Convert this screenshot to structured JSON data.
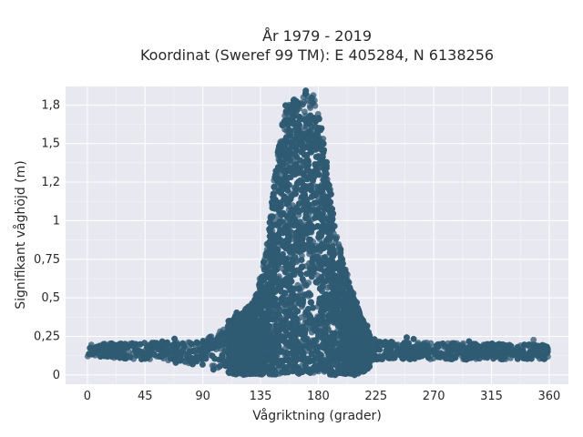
{
  "chart_data": {
    "type": "scatter",
    "title_lines": [
      "År 1979 - 2019",
      "Koordinat (Sweref 99 TM): E 405284, N 6138256"
    ],
    "xlabel": "Vågriktning (grader)",
    "ylabel": "Signifikant våghöjd (m)",
    "xlim": [
      -17,
      375
    ],
    "ylim": [
      -0.06,
      1.87
    ],
    "x_ticks": [
      0,
      45,
      90,
      135,
      180,
      225,
      270,
      315,
      360
    ],
    "x_tick_labels": [
      "0",
      "45",
      "90",
      "135",
      "180",
      "225",
      "270",
      "315",
      "360"
    ],
    "y_ticks": [
      0,
      0.25,
      0.5,
      0.75,
      1,
      1.25,
      1.5,
      1.75
    ],
    "y_tick_labels": [
      "0",
      "0,25",
      "0,5",
      "0,75",
      "1",
      "1,2",
      "1,5",
      "1,8"
    ],
    "grid": true,
    "marker_color": "#2f5b73",
    "plot_background": "#e8e8f0",
    "envelope": {
      "x": [
        0,
        45,
        90,
        100,
        110,
        120,
        130,
        135,
        140,
        145,
        150,
        155,
        160,
        165,
        170,
        175,
        180,
        185,
        190,
        195,
        200,
        205,
        210,
        215,
        220,
        225,
        240,
        270,
        315,
        360
      ],
      "y_max": [
        0.2,
        0.21,
        0.22,
        0.27,
        0.33,
        0.4,
        0.48,
        0.62,
        0.85,
        1.2,
        1.55,
        1.74,
        1.78,
        1.77,
        1.82,
        1.82,
        1.7,
        1.45,
        1.15,
        0.88,
        0.7,
        0.57,
        0.46,
        0.35,
        0.28,
        0.22,
        0.22,
        0.21,
        0.2,
        0.2
      ],
      "y_min": [
        0.12,
        0.1,
        0.06,
        0.03,
        0.01,
        0.0,
        0.0,
        0.0,
        0.0,
        0.0,
        0.0,
        0.0,
        0.0,
        0.0,
        0.0,
        0.0,
        0.0,
        0.0,
        0.0,
        0.0,
        0.0,
        0.0,
        0.0,
        0.02,
        0.05,
        0.1,
        0.1,
        0.1,
        0.1,
        0.1
      ]
    }
  }
}
